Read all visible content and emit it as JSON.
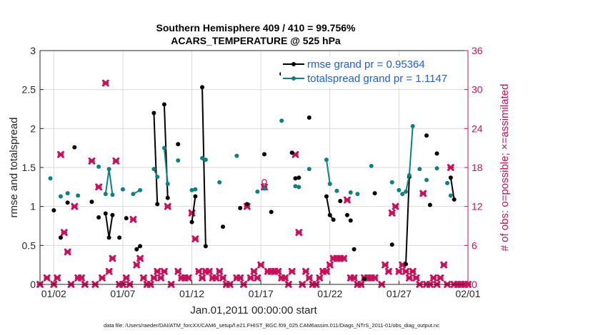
{
  "chart_data": {
    "type": "line",
    "title_line1": "Southern Hemisphere 409 / 410 = 99.756%",
    "title_line2": "ACARS_TEMPERATURE @ 525 hPa",
    "xlabel": "Jan.01,2011 00:00:00 start",
    "ylabel_left": "rmse and totalspread",
    "ylabel_right": "# of obs: o=possible; ×=assimilated",
    "xlim": [
      1,
      32
    ],
    "ylim_left": [
      0,
      3
    ],
    "ylim_right": [
      0,
      36
    ],
    "x_ticks": [
      {
        "v": 2,
        "label": "01/02"
      },
      {
        "v": 7,
        "label": "01/07"
      },
      {
        "v": 12,
        "label": "01/12"
      },
      {
        "v": 17,
        "label": "01/17"
      },
      {
        "v": 22,
        "label": "01/22"
      },
      {
        "v": 27,
        "label": "01/27"
      },
      {
        "v": 32,
        "label": "02/01"
      }
    ],
    "y_ticks_left": [
      "0",
      "0.5",
      "1",
      "1.5",
      "2",
      "2.5",
      "3"
    ],
    "y_ticks_left_values": [
      0,
      0.5,
      1,
      1.5,
      2,
      2.5,
      3
    ],
    "y_ticks_right": [
      "0",
      "6",
      "12",
      "18",
      "24",
      "30",
      "36"
    ],
    "y_ticks_right_values": [
      0,
      6,
      12,
      18,
      24,
      30,
      36
    ],
    "grid": true,
    "legend_position": "top-right",
    "series": [
      {
        "name": "rmse grand pr = 0.95364",
        "color": "#000000",
        "axis": "left",
        "segments": [
          [
            [
              2.0,
              0.95
            ]
          ],
          [
            [
              2.5,
              0.6
            ]
          ],
          [
            [
              3.0,
              1.05
            ]
          ],
          [
            [
              3.5,
              1.76
            ]
          ],
          [
            [
              4.75,
              1.06
            ]
          ],
          [
            [
              5.25,
              0.86
            ]
          ],
          [
            [
              5.75,
              0.91
            ],
            [
              6.0,
              0.6
            ],
            [
              6.25,
              0.89
            ]
          ],
          [
            [
              6.75,
              0.6
            ]
          ],
          [
            [
              7.25,
              0.85
            ]
          ],
          [
            [
              8.0,
              0.45
            ],
            [
              8.25,
              0.49
            ]
          ],
          [
            [
              9.25,
              2.2
            ],
            [
              9.5,
              1.03
            ]
          ],
          [
            [
              10.0,
              2.31
            ],
            [
              10.25,
              1.11
            ]
          ],
          [
            [
              11.0,
              1.8
            ]
          ],
          [
            [
              12.0,
              0.8
            ],
            [
              12.25,
              1.13
            ]
          ],
          [
            [
              12.75,
              2.53
            ],
            [
              13.0,
              0.49
            ]
          ],
          [
            [
              14.25,
              0.74
            ]
          ],
          [
            [
              15.5,
              0.98
            ]
          ],
          [
            [
              16.0,
              1.03
            ]
          ],
          [
            [
              17.25,
              1.67
            ]
          ],
          [
            [
              17.75,
              0.93
            ]
          ],
          [
            [
              18.5,
              2.7
            ]
          ],
          [
            [
              19.25,
              1.69
            ]
          ],
          [
            [
              19.5,
              1.36
            ],
            [
              19.75,
              1.37
            ]
          ],
          [
            [
              20.5,
              2.14
            ]
          ],
          [
            [
              21.75,
              1.13
            ],
            [
              22.0,
              0.89
            ],
            [
              22.25,
              0.83
            ]
          ],
          [
            [
              22.75,
              1.07
            ]
          ],
          [
            [
              23.25,
              0.89
            ]
          ],
          [
            [
              23.5,
              0.82
            ]
          ],
          [
            [
              23.75,
              0.45
            ]
          ],
          [
            [
              24.5,
              0.07
            ]
          ],
          [
            [
              25.25,
              1.17
            ]
          ],
          [
            [
              26.5,
              0.51
            ]
          ],
          [
            [
              27.5,
              0.26
            ],
            [
              27.75,
              1.38
            ]
          ],
          [
            [
              29.0,
              1.91
            ]
          ],
          [
            [
              29.25,
              1.02
            ]
          ],
          [
            [
              29.75,
              1.68
            ]
          ],
          [
            [
              30.75,
              1.37
            ],
            [
              31.0,
              1.09
            ]
          ]
        ]
      },
      {
        "name": "totalspread grand pr = 1.1147",
        "color": "#0d8080",
        "axis": "left",
        "segments": [
          [
            [
              1.75,
              1.36
            ]
          ],
          [
            [
              2.5,
              1.13
            ]
          ],
          [
            [
              3.0,
              1.17
            ]
          ],
          [
            [
              3.75,
              1.14
            ]
          ],
          [
            [
              5.25,
              1.51
            ]
          ],
          [
            [
              5.75,
              1.16
            ],
            [
              6.0,
              1.48
            ],
            [
              6.25,
              1.15
            ]
          ],
          [
            [
              7.0,
              1.22
            ]
          ],
          [
            [
              7.75,
              1.16
            ],
            [
              8.25,
              1.21
            ]
          ],
          [
            [
              9.25,
              1.48
            ],
            [
              9.5,
              1.38
            ]
          ],
          [
            [
              10.0,
              1.75
            ],
            [
              10.25,
              1.29
            ]
          ],
          [
            [
              11.0,
              1.59
            ]
          ],
          [
            [
              12.0,
              1.21
            ],
            [
              12.25,
              1.22
            ]
          ],
          [
            [
              12.75,
              1.62
            ],
            [
              13.0,
              1.6
            ]
          ],
          [
            [
              14.0,
              1.31
            ]
          ],
          [
            [
              15.25,
              1.65
            ]
          ],
          [
            [
              16.75,
              1.19
            ]
          ],
          [
            [
              17.25,
              1.23
            ]
          ],
          [
            [
              18.5,
              2.1
            ]
          ],
          [
            [
              19.5,
              1.26
            ]
          ],
          [
            [
              19.75,
              1.25
            ]
          ],
          [
            [
              20.5,
              1.48
            ]
          ],
          [
            [
              21.75,
              1.6
            ],
            [
              22.0,
              1.29
            ]
          ],
          [
            [
              22.5,
              1.2
            ]
          ],
          [
            [
              23.5,
              1.18
            ]
          ],
          [
            [
              24.0,
              1.16
            ]
          ],
          [
            [
              25.0,
              1.52
            ]
          ],
          [
            [
              26.5,
              1.31
            ]
          ],
          [
            [
              27.0,
              1.21
            ]
          ],
          [
            [
              27.25,
              1.16
            ],
            [
              27.5,
              1.19
            ],
            [
              27.75,
              1.4
            ],
            [
              28.0,
              2.03
            ]
          ],
          [
            [
              28.5,
              1.48
            ]
          ],
          [
            [
              29.0,
              1.34
            ]
          ],
          [
            [
              29.75,
              1.49
            ]
          ],
          [
            [
              30.5,
              1.3
            ]
          ],
          [
            [
              30.75,
              1.14
            ]
          ]
        ]
      },
      {
        "name": "# of obs assimilated",
        "color": "#c8105a",
        "axis": "right",
        "points": [
          [
            1.0,
            0
          ],
          [
            1.5,
            1
          ],
          [
            2.0,
            0
          ],
          [
            2.25,
            1
          ],
          [
            2.5,
            20
          ],
          [
            2.75,
            8
          ],
          [
            3.0,
            5
          ],
          [
            3.25,
            0
          ],
          [
            3.5,
            12
          ],
          [
            3.75,
            1
          ],
          [
            4.0,
            1
          ],
          [
            4.25,
            0
          ],
          [
            4.75,
            19
          ],
          [
            5.0,
            0
          ],
          [
            5.25,
            15
          ],
          [
            5.5,
            1
          ],
          [
            5.75,
            31
          ],
          [
            6.0,
            2
          ],
          [
            6.25,
            4
          ],
          [
            6.5,
            19
          ],
          [
            6.75,
            0
          ],
          [
            7.0,
            0
          ],
          [
            7.25,
            1
          ],
          [
            7.5,
            0
          ],
          [
            7.75,
            10
          ],
          [
            8.0,
            3
          ],
          [
            8.25,
            4
          ],
          [
            8.5,
            1
          ],
          [
            8.75,
            0
          ],
          [
            9.0,
            0
          ],
          [
            9.25,
            1
          ],
          [
            9.5,
            2
          ],
          [
            9.75,
            1
          ],
          [
            10.0,
            2
          ],
          [
            10.25,
            12
          ],
          [
            10.5,
            0
          ],
          [
            11.0,
            2
          ],
          [
            11.25,
            1
          ],
          [
            11.5,
            1
          ],
          [
            11.75,
            1
          ],
          [
            12.0,
            11
          ],
          [
            12.25,
            7
          ],
          [
            12.5,
            2
          ],
          [
            12.75,
            1
          ],
          [
            13.0,
            2
          ],
          [
            13.25,
            2
          ],
          [
            13.5,
            1
          ],
          [
            13.75,
            1
          ],
          [
            14.0,
            2
          ],
          [
            14.25,
            1
          ],
          [
            14.5,
            0
          ],
          [
            14.75,
            0
          ],
          [
            15.25,
            1
          ],
          [
            15.5,
            1
          ],
          [
            15.75,
            0
          ],
          [
            16.0,
            12
          ],
          [
            16.25,
            1
          ],
          [
            16.5,
            2
          ],
          [
            16.75,
            1
          ],
          [
            17.0,
            3
          ],
          [
            17.25,
            15
          ],
          [
            17.5,
            2
          ],
          [
            17.75,
            2
          ],
          [
            18.0,
            2
          ],
          [
            18.25,
            2
          ],
          [
            18.5,
            1
          ],
          [
            18.75,
            1
          ],
          [
            19.0,
            0
          ],
          [
            19.25,
            2
          ],
          [
            19.5,
            20
          ],
          [
            19.75,
            8
          ],
          [
            20.0,
            0
          ],
          [
            20.25,
            2
          ],
          [
            20.5,
            1
          ],
          [
            20.75,
            0
          ],
          [
            21.0,
            0
          ],
          [
            21.25,
            1
          ],
          [
            21.5,
            2
          ],
          [
            21.75,
            2
          ],
          [
            22.0,
            3
          ],
          [
            22.25,
            4
          ],
          [
            22.5,
            4
          ],
          [
            22.75,
            4
          ],
          [
            23.0,
            4
          ],
          [
            23.25,
            13
          ],
          [
            23.5,
            1
          ],
          [
            23.75,
            1
          ],
          [
            24.0,
            0
          ],
          [
            24.25,
            0
          ],
          [
            24.5,
            1
          ],
          [
            24.75,
            1
          ],
          [
            25.0,
            1
          ],
          [
            25.25,
            1
          ],
          [
            25.75,
            0
          ],
          [
            26.0,
            3
          ],
          [
            26.25,
            2
          ],
          [
            26.5,
            11
          ],
          [
            26.75,
            12
          ],
          [
            27.0,
            2
          ],
          [
            27.25,
            3
          ],
          [
            27.5,
            2
          ],
          [
            27.75,
            1
          ],
          [
            28.0,
            2
          ],
          [
            28.25,
            1
          ],
          [
            28.5,
            0
          ],
          [
            28.75,
            14
          ],
          [
            29.0,
            0
          ],
          [
            29.25,
            0
          ],
          [
            29.5,
            1
          ],
          [
            29.75,
            0
          ],
          [
            30.0,
            1
          ],
          [
            30.25,
            3
          ],
          [
            30.5,
            0
          ],
          [
            30.75,
            18
          ],
          [
            31.0,
            0
          ],
          [
            31.25,
            0
          ],
          [
            31.5,
            0
          ],
          [
            31.75,
            0
          ],
          [
            32.0,
            0
          ]
        ]
      },
      {
        "name": "# of obs possible (not assimilated)",
        "color": "#c8105a",
        "axis": "right",
        "points": [
          [
            17.25,
            15.8
          ]
        ]
      }
    ],
    "legend": [
      {
        "label": "rmse grand pr = 0.95364",
        "color": "#000000"
      },
      {
        "label": "totalspread grand pr = 1.1147",
        "color": "#0d8080"
      }
    ]
  },
  "footer": "data file: /Users/raeder/DAI/ATM_forcXX/CAM6_setup/f.e21.FHIST_BGC.f09_025.CAM6assim.011/Diags_NTrS_2011-01/obs_diag_output.nc"
}
